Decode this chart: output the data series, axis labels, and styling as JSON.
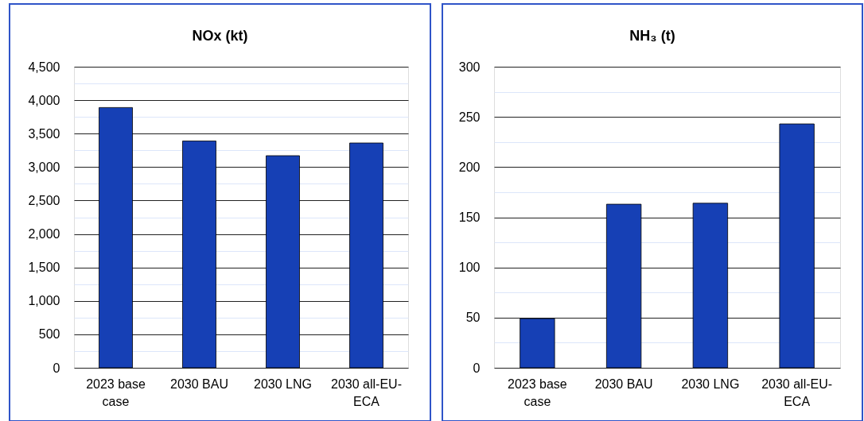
{
  "chart_data": [
    {
      "type": "bar",
      "title": "NOx (kt)",
      "categories": [
        "2023 base case",
        "2030 BAU",
        "2030 LNG",
        "2030 all-EU-ECA"
      ],
      "values": [
        3890,
        3390,
        3170,
        3360
      ],
      "color": "#1640b5",
      "ylim": [
        0,
        4500
      ],
      "yticks": [
        0,
        {
          "value": 250,
          "label": null
        },
        500,
        {
          "value": 750,
          "label": null
        },
        {
          "value": 1000,
          "label": "1,000"
        },
        {
          "value": 1250,
          "label": null
        },
        {
          "value": 1500,
          "label": "1,500"
        },
        {
          "value": 1750,
          "label": null
        },
        {
          "value": 2000,
          "label": "2,000"
        },
        {
          "value": 2250,
          "label": null
        },
        {
          "value": 2500,
          "label": "2,500"
        },
        {
          "value": 2750,
          "label": null
        },
        {
          "value": 3000,
          "label": "3,000"
        },
        {
          "value": 3250,
          "label": null
        },
        {
          "value": 3500,
          "label": "3,500"
        },
        {
          "value": 3750,
          "label": null
        },
        {
          "value": 4000,
          "label": "4,000"
        },
        {
          "value": 4250,
          "label": null
        },
        {
          "value": 4500,
          "label": "4,500"
        }
      ],
      "grid": "y"
    },
    {
      "type": "bar",
      "title": "NH₃ (t)",
      "categories": [
        "2023 base case",
        "2030 BAU",
        "2030 LNG",
        "2030 all-EU-ECA"
      ],
      "values": [
        49,
        163,
        164,
        243
      ],
      "color": "#1640b5",
      "ylim": [
        0,
        300
      ],
      "yticks": [
        0,
        {
          "value": 25,
          "label": null
        },
        50,
        {
          "value": 75,
          "label": null
        },
        100,
        {
          "value": 125,
          "label": null
        },
        150,
        {
          "value": 175,
          "label": null
        },
        200,
        {
          "value": 225,
          "label": null
        },
        250,
        {
          "value": 275,
          "label": null
        },
        300
      ],
      "grid": "y"
    }
  ]
}
